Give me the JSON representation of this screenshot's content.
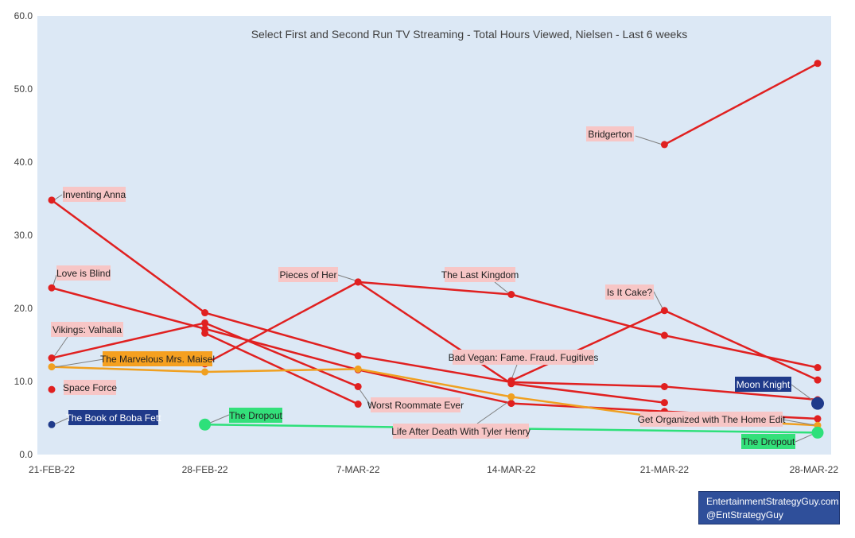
{
  "chart_data": {
    "type": "line",
    "title": "Select First and Second Run TV Streaming - Total Hours Viewed, Nielsen - Last 6 weeks",
    "xlabel": "",
    "ylabel": "",
    "categories": [
      "21-FEB-22",
      "28-FEB-22",
      "7-MAR-22",
      "14-MAR-22",
      "21-MAR-22",
      "28-MAR-22"
    ],
    "ylim": [
      0,
      60
    ],
    "yticks": [
      "0.0",
      "10.0",
      "20.0",
      "30.0",
      "40.0",
      "50.0",
      "60.0"
    ],
    "grid": false,
    "colors": {
      "plot_bg": "#dce8f5",
      "red": "#e02020",
      "orange": "#f0a020",
      "navy": "#1f3a8a",
      "green": "#2ee07a",
      "label_pink": "#f7c6c6",
      "label_orange": "#f5a020",
      "label_navy": "#1f3a8a",
      "label_green": "#33e07a"
    },
    "series": [
      {
        "name": "Bridgerton",
        "color": "red",
        "values": [
          null,
          null,
          null,
          null,
          42.4,
          53.5
        ]
      },
      {
        "name": "Inventing Anna",
        "color": "red",
        "values": [
          34.8,
          19.4,
          13.5,
          9.9,
          9.3,
          7.5
        ]
      },
      {
        "name": "Love is Blind",
        "color": "red",
        "values": [
          22.8,
          17.2,
          11.6,
          7.0,
          5.9,
          4.9
        ]
      },
      {
        "name": "Vikings: Valhalla",
        "color": "red",
        "values": [
          13.2,
          18.0,
          9.3,
          null,
          null,
          null
        ]
      },
      {
        "name": "Pieces of Her",
        "color": "red",
        "values": [
          null,
          16.6,
          6.9,
          null,
          null,
          null
        ]
      },
      {
        "name": "The Last Kingdom",
        "color": "red",
        "values": [
          null,
          12.4,
          23.6,
          21.9,
          16.3,
          11.9
        ]
      },
      {
        "name": "Bad Vegan: Fame. Fraud. Fugitives",
        "color": "red",
        "values": [
          null,
          null,
          23.6,
          9.7,
          7.1,
          null
        ]
      },
      {
        "name": "Is It Cake?",
        "color": "red",
        "values": [
          null,
          null,
          null,
          10.1,
          19.7,
          10.2
        ]
      },
      {
        "name": "Space Force",
        "color": "red",
        "values": [
          8.9,
          null,
          null,
          null,
          null,
          null
        ]
      },
      {
        "name": "The Marvelous Mrs. Maisel",
        "color": "orange",
        "values": [
          12.0,
          11.3,
          11.7,
          7.9,
          5.0,
          4.0
        ]
      },
      {
        "name": "The Book of Boba Fett",
        "color": "navy",
        "values": [
          4.1,
          null,
          null,
          null,
          null,
          null
        ]
      },
      {
        "name": "Moon Knight",
        "color": "navy",
        "values": [
          null,
          null,
          null,
          null,
          null,
          7.0
        ]
      },
      {
        "name": "The Dropout",
        "color": "green",
        "values": [
          null,
          4.1,
          null,
          null,
          null,
          3.0
        ]
      }
    ],
    "annotations": [
      {
        "text": "Bridgerton",
        "style": "pink"
      },
      {
        "text": "Inventing Anna",
        "style": "pink"
      },
      {
        "text": "Love is Blind",
        "style": "pink"
      },
      {
        "text": "Vikings: Valhalla",
        "style": "pink"
      },
      {
        "text": "Space Force",
        "style": "pink"
      },
      {
        "text": "The Book of Boba Fett",
        "style": "navy"
      },
      {
        "text": "The Marvelous Mrs. Maisel",
        "style": "orange"
      },
      {
        "text": "The Dropout",
        "style": "green"
      },
      {
        "text": "Pieces of Her",
        "style": "pink"
      },
      {
        "text": "The Last Kingdom",
        "style": "pink"
      },
      {
        "text": "Worst Roommate Ever",
        "style": "pink"
      },
      {
        "text": "Bad Vegan: Fame. Fraud. Fugitives",
        "style": "pink"
      },
      {
        "text": "Life After Death With Tyler Henry",
        "style": "pink"
      },
      {
        "text": "Is It Cake?",
        "style": "pink"
      },
      {
        "text": "Moon Knight",
        "style": "navy"
      },
      {
        "text": "Get Organized with The Home Edit",
        "style": "pink"
      },
      {
        "text": "The Dropout",
        "style": "green"
      }
    ]
  },
  "credit": {
    "line1": "EntertainmentStrategyGuy.com",
    "line2": "@EntStrategyGuy"
  }
}
